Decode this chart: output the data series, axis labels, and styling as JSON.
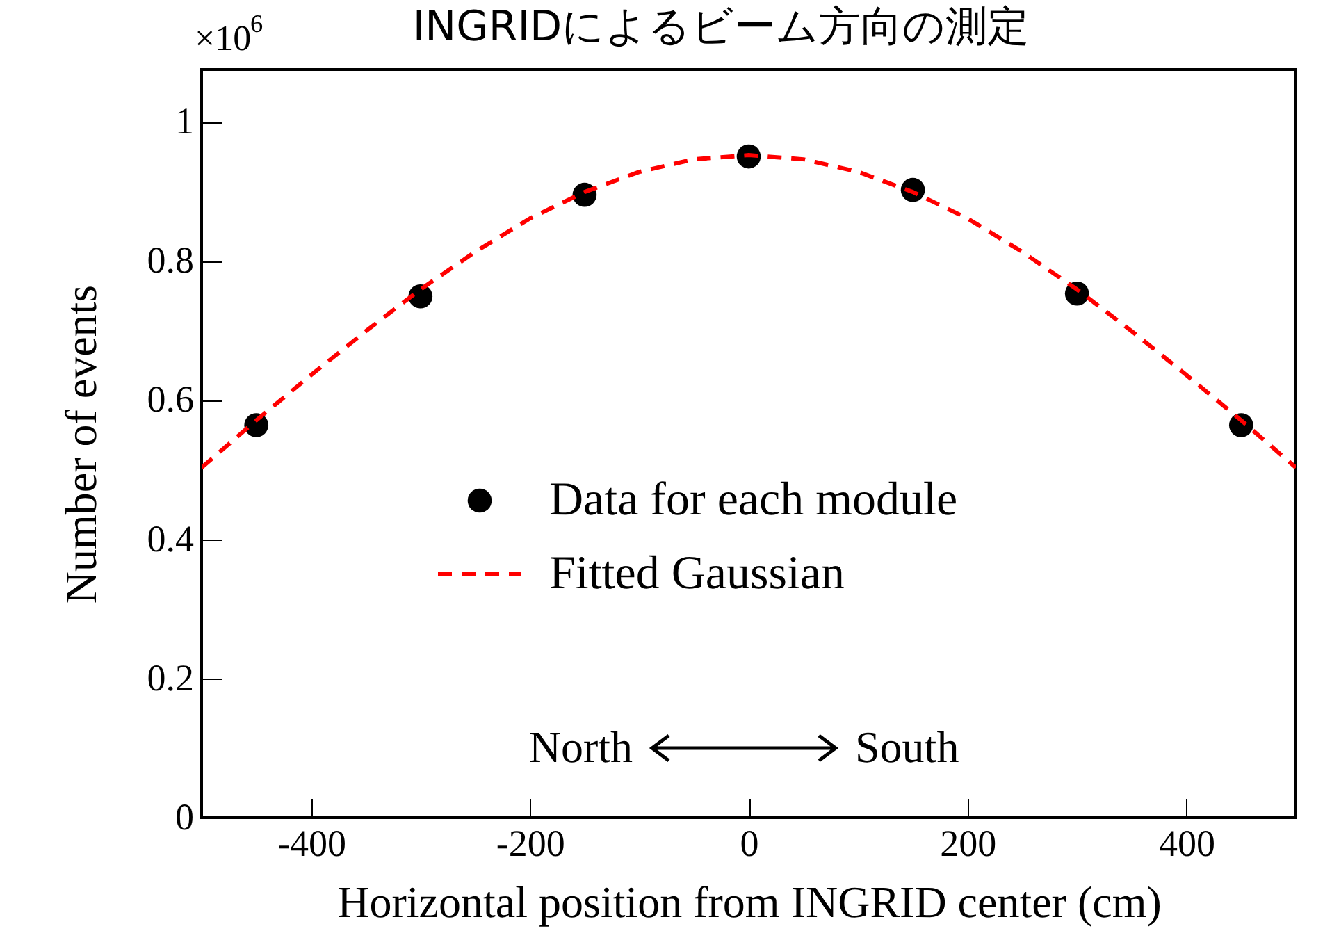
{
  "chart_data": {
    "type": "scatter",
    "title": "INGRIDによるビーム方向の測定",
    "xlabel": "Horizontal position from INGRID center (cm)",
    "ylabel": "Number of events",
    "xlim": [
      -500,
      500
    ],
    "xticks": [
      -400,
      -200,
      0,
      200,
      400
    ],
    "ylim": [
      0,
      1.075
    ],
    "yticks": [
      0,
      0.2,
      0.4,
      0.6,
      0.8,
      1
    ],
    "marker": "circle",
    "legend": "left",
    "grid": false,
    "annotations": [
      "×10$^{6}$",
      "North",
      "South"
    ],
    "series": [
      {
        "name": "Data for each module",
        "color": "#000000",
        "x": [
          -450,
          -300,
          -150,
          0,
          150,
          300,
          450
        ],
        "values": [
          0.564,
          0.749,
          0.895,
          0.95,
          0.902,
          0.753,
          0.564
        ]
      },
      {
        "name": "Fitted Gaussian",
        "type": "line",
        "line_style": "dashed",
        "marker": "none",
        "color": "#ff0000",
        "x": [
          -500,
          -450,
          -400,
          -350,
          -300,
          -250,
          -200,
          -150,
          -100,
          -50,
          0,
          50,
          100,
          150,
          200,
          250,
          300,
          350,
          400,
          450,
          500
        ],
        "values": [
          0.503,
          0.571,
          0.636,
          0.699,
          0.759,
          0.813,
          0.861,
          0.899,
          0.928,
          0.946,
          0.952,
          0.946,
          0.928,
          0.899,
          0.861,
          0.813,
          0.759,
          0.699,
          0.636,
          0.571,
          0.503
        ]
      }
    ]
  }
}
